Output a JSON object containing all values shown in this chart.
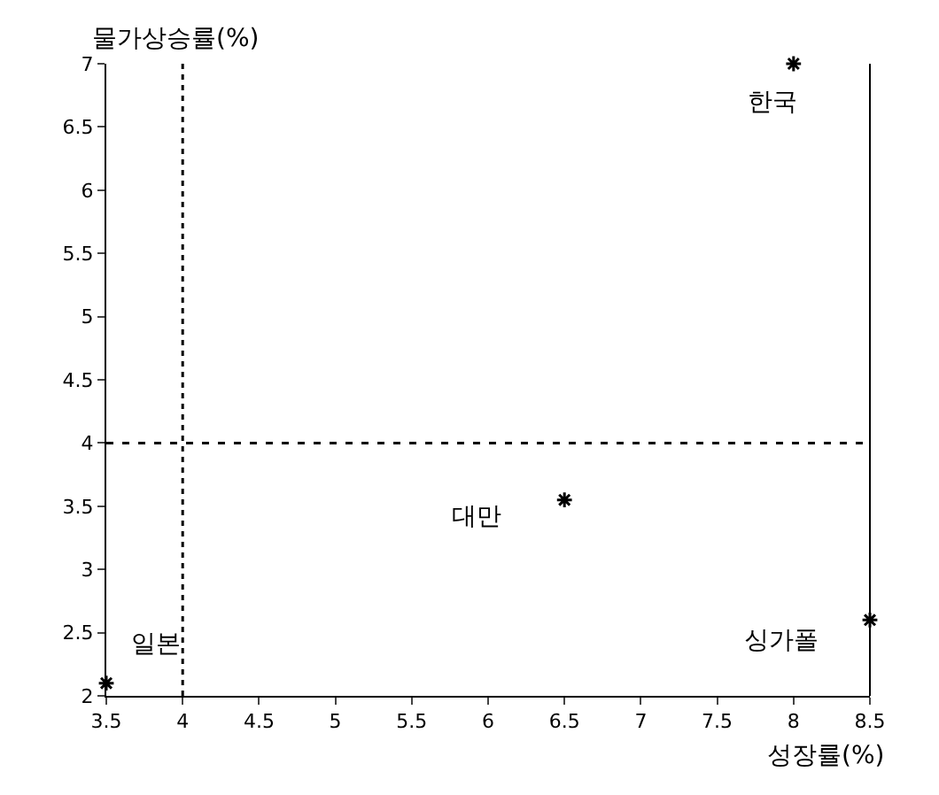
{
  "chart_data": {
    "type": "scatter",
    "xlabel": "성장률(%)",
    "ylabel": "물가상승률(%)",
    "x": [
      8,
      6.5,
      8.5,
      3.5
    ],
    "series": [
      {
        "color": "#000000",
        "values": [
          7,
          3.55,
          2.6,
          2.1
        ]
      }
    ],
    "annotations": [
      {
        "text": "한국",
        "x": 8,
        "y": 7
      },
      {
        "text": "대만",
        "x": 6.5,
        "y": 3.55
      },
      {
        "text": "싱가폴",
        "x": 8.5,
        "y": 2.6
      },
      {
        "text": "일본",
        "x": 3.5,
        "y": 2.1
      }
    ],
    "ref_lines": [
      {
        "axis": "x",
        "value": 4,
        "line_style": "dotted",
        "color": "#000000"
      },
      {
        "axis": "y",
        "value": 4,
        "line_style": "dashed",
        "color": "#000000"
      }
    ],
    "xlim": [
      3.5,
      8.5
    ],
    "xticks": [
      3.5,
      4,
      4.5,
      5,
      5.5,
      6,
      6.5,
      7,
      7.5,
      8,
      8.5
    ],
    "ylim": [
      2,
      7
    ],
    "yticks": [
      2,
      2.5,
      3,
      3.5,
      4,
      4.5,
      5,
      5.5,
      6,
      6.5,
      7
    ],
    "marker": "cross"
  }
}
